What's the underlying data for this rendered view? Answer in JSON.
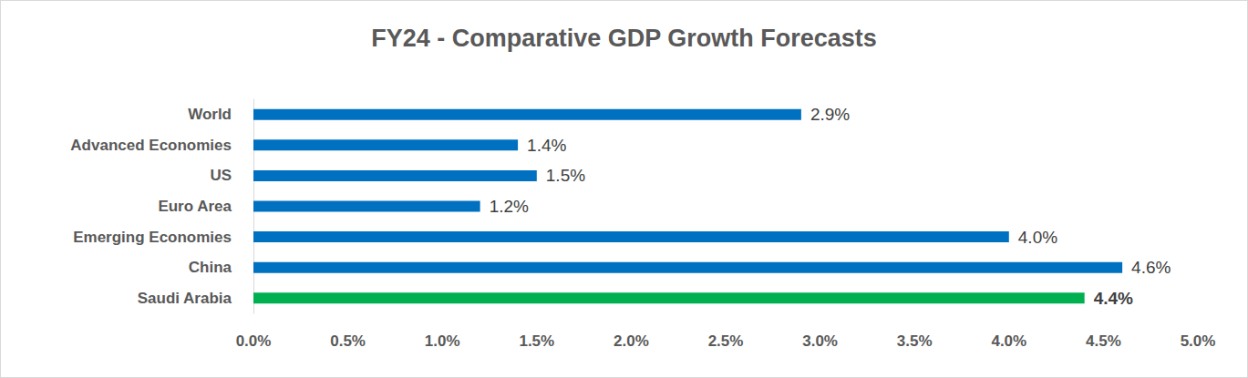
{
  "chart_data": {
    "type": "bar",
    "orientation": "horizontal",
    "title": "FY24 - Comparative GDP Growth Forecasts",
    "categories": [
      "World",
      "Advanced Economies",
      "US",
      "Euro Area",
      "Emerging Economies",
      "China",
      "Saudi Arabia"
    ],
    "values": [
      2.9,
      1.4,
      1.5,
      1.2,
      4.0,
      4.6,
      4.4
    ],
    "value_labels": [
      "2.9%",
      "1.4%",
      "1.5%",
      "1.2%",
      "4.0%",
      "4.6%",
      "4.4%"
    ],
    "colors": [
      "#0070c0",
      "#0070c0",
      "#0070c0",
      "#0070c0",
      "#0070c0",
      "#0070c0",
      "#00b050"
    ],
    "xlim": [
      0,
      5
    ],
    "xticks": [
      {
        "value": 0,
        "label": "0.0%"
      },
      {
        "value": 0.5,
        "label": "0.5%"
      },
      {
        "value": 1,
        "label": "1.0%"
      },
      {
        "value": 1.5,
        "label": "1.5%"
      },
      {
        "value": 2,
        "label": "2.0%"
      },
      {
        "value": 2.5,
        "label": "2.5%"
      },
      {
        "value": 3,
        "label": "3.0%"
      },
      {
        "value": 3.5,
        "label": "3.5%"
      },
      {
        "value": 4,
        "label": "4.0%"
      },
      {
        "value": 4.5,
        "label": "4.5%"
      },
      {
        "value": 5,
        "label": "5.0%"
      }
    ],
    "grid": false,
    "data_labels": true
  }
}
